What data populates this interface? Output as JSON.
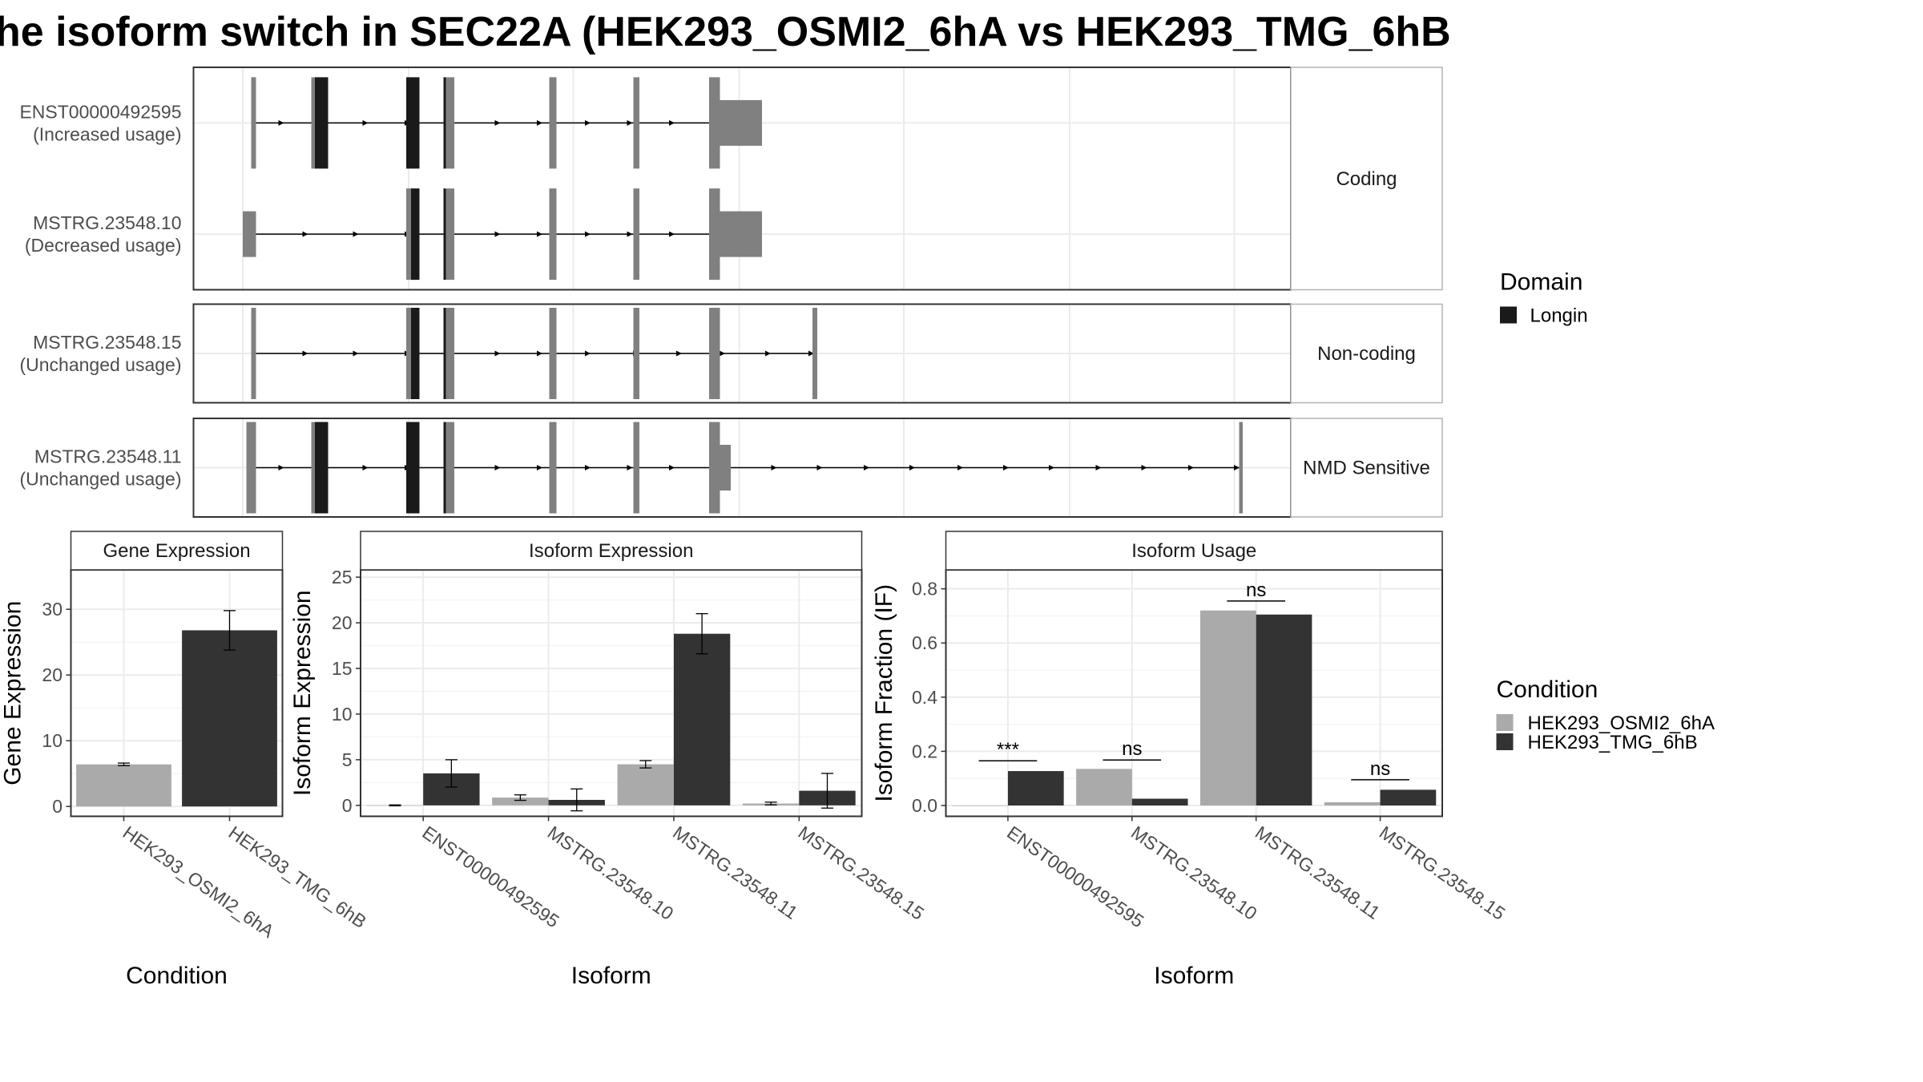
{
  "title": "he isoform switch in SEC22A (HEK293_OSMI2_6hA vs HEK293_TMG_6hB",
  "colors": {
    "exon": "#808080",
    "domain": "#1a1a1a",
    "condA": "#aaaaaa",
    "condB": "#333333",
    "grid": "#ebebeb",
    "strip": "#ffffff"
  },
  "legend_domain": {
    "title": "Domain",
    "items": [
      {
        "label": "Longin",
        "color": "#1a1a1a"
      }
    ]
  },
  "legend_condition": {
    "title": "Condition",
    "items": [
      {
        "label": "HEK293_OSMI2_6hA",
        "color": "#aaaaaa"
      },
      {
        "label": "HEK293_TMG_6hB",
        "color": "#333333"
      }
    ]
  },
  "chart_data": [
    {
      "type": "gene-structure",
      "panels": [
        {
          "strip": "Coding",
          "transcripts": [
            {
              "id": "ENST00000492595",
              "usage": "(Increased usage)",
              "introns": [
                [
                  210,
                  600
                ]
              ],
              "exons": [
                [
                  209,
                  213,
                  "n"
                ],
                [
                  259,
                  263,
                  "n"
                ],
                [
                  262,
                  273,
                  "d"
                ],
                [
                  338,
                  349,
                  "d"
                ],
                [
                  369,
                  371,
                  "d"
                ],
                [
                  371,
                  378,
                  "n"
                ],
                [
                  457,
                  463,
                  "n"
                ],
                [
                  527,
                  532,
                  "n"
                ],
                [
                  590,
                  599,
                  "n"
                ],
                [
                  599,
                  634,
                  "u"
                ]
              ],
              "arrows": [
                235,
                270,
                305,
                340,
                375,
                415,
                450,
                490,
                525,
                560,
                596
              ]
            },
            {
              "id": "MSTRG.23548.10",
              "usage": "(Decreased usage)",
              "introns": [
                [
                  202,
                  600
                ]
              ],
              "exons": [
                [
                  202,
                  213,
                  "u"
                ],
                [
                  338,
                  342,
                  "n"
                ],
                [
                  342,
                  349,
                  "d"
                ],
                [
                  369,
                  371,
                  "d"
                ],
                [
                  371,
                  378,
                  "n"
                ],
                [
                  457,
                  463,
                  "n"
                ],
                [
                  527,
                  532,
                  "n"
                ],
                [
                  590,
                  599,
                  "n"
                ],
                [
                  599,
                  634,
                  "u"
                ]
              ],
              "arrows": [
                255,
                297,
                340,
                375,
                415,
                450,
                490,
                525,
                560,
                596
              ]
            }
          ]
        },
        {
          "strip": "Non-coding",
          "transcripts": [
            {
              "id": "MSTRG.23548.15",
              "usage": "(Unchanged usage)",
              "introns": [
                [
                  210,
                  680
                ]
              ],
              "exons": [
                [
                  209,
                  213,
                  "n"
                ],
                [
                  338,
                  342,
                  "n"
                ],
                [
                  342,
                  349,
                  "d"
                ],
                [
                  369,
                  371,
                  "d"
                ],
                [
                  371,
                  378,
                  "n"
                ],
                [
                  457,
                  463,
                  "n"
                ],
                [
                  527,
                  532,
                  "n"
                ],
                [
                  590,
                  599,
                  "n"
                ],
                [
                  676,
                  680,
                  "n"
                ]
              ],
              "arrows": [
                255,
                297,
                340,
                375,
                415,
                450,
                490,
                530,
                566,
                602,
                640,
                676
              ]
            }
          ]
        },
        {
          "strip": "NMD Sensitive",
          "transcripts": [
            {
              "id": "MSTRG.23548.11",
              "usage": "(Unchanged usage)",
              "introns": [
                [
                  206,
                  1033
                ]
              ],
              "exons": [
                [
                  205,
                  213,
                  "n"
                ],
                [
                  259,
                  263,
                  "n"
                ],
                [
                  262,
                  273,
                  "d"
                ],
                [
                  338,
                  349,
                  "d"
                ],
                [
                  369,
                  371,
                  "d"
                ],
                [
                  371,
                  378,
                  "n"
                ],
                [
                  457,
                  463,
                  "n"
                ],
                [
                  527,
                  532,
                  "n"
                ],
                [
                  590,
                  599,
                  "n"
                ],
                [
                  599,
                  608,
                  "u"
                ],
                [
                  1031,
                  1034,
                  "n"
                ]
              ],
              "arrows": [
                235,
                270,
                305,
                340,
                375,
                415,
                450,
                490,
                525,
                560,
                596,
                645,
                683,
                722,
                760,
                800,
                838,
                876,
                915,
                953,
                992,
                1030
              ]
            }
          ]
        }
      ]
    },
    {
      "type": "bar",
      "strip": "Gene Expression",
      "categories": [
        "HEK293_OSMI2_6hA",
        "HEK293_TMG_6hB"
      ],
      "values": [
        6.4,
        26.8
      ],
      "err": [
        0.2,
        3.0
      ],
      "ylabel": "Gene Expression",
      "xlabel": "Condition",
      "ylim": [
        -1.5,
        36
      ],
      "yticks": [
        0,
        10,
        20,
        30
      ]
    },
    {
      "type": "bar",
      "strip": "Isoform Expression",
      "categories": [
        "ENST00000492595",
        "MSTRG.23548.10",
        "MSTRG.23548.11",
        "MSTRG.23548.15"
      ],
      "series": [
        {
          "name": "HEK293_OSMI2_6hA",
          "values": [
            0.0,
            0.85,
            4.5,
            0.2
          ],
          "err": [
            0.05,
            0.3,
            0.4,
            0.15
          ]
        },
        {
          "name": "HEK293_TMG_6hB",
          "values": [
            3.5,
            0.6,
            18.8,
            1.6
          ],
          "err": [
            1.5,
            1.2,
            2.2,
            1.9
          ]
        }
      ],
      "ylabel": "Isoform Expression",
      "xlabel": "Isoform",
      "ylim": [
        -1.2,
        25.8
      ],
      "yticks": [
        0,
        5,
        10,
        15,
        20,
        25
      ]
    },
    {
      "type": "bar",
      "strip": "Isoform Usage",
      "categories": [
        "ENST00000492595",
        "MSTRG.23548.10",
        "MSTRG.23548.11",
        "MSTRG.23548.15"
      ],
      "series": [
        {
          "name": "HEK293_OSMI2_6hA",
          "values": [
            0.0,
            0.135,
            0.72,
            0.012
          ]
        },
        {
          "name": "HEK293_TMG_6hB",
          "values": [
            0.127,
            0.025,
            0.705,
            0.058
          ]
        }
      ],
      "significance": [
        "***",
        "ns",
        "ns",
        "ns"
      ],
      "sig_level": [
        0.165,
        0.168,
        0.755,
        0.095
      ],
      "ylabel": "Isoform Fraction (IF)",
      "xlabel": "Isoform",
      "ylim": [
        -0.04,
        0.87
      ],
      "yticks": [
        0.0,
        0.2,
        0.4,
        0.6,
        0.8
      ],
      "ytick_labels": [
        "0.0",
        "0.2",
        "0.4",
        "0.6",
        "0.8"
      ]
    }
  ]
}
